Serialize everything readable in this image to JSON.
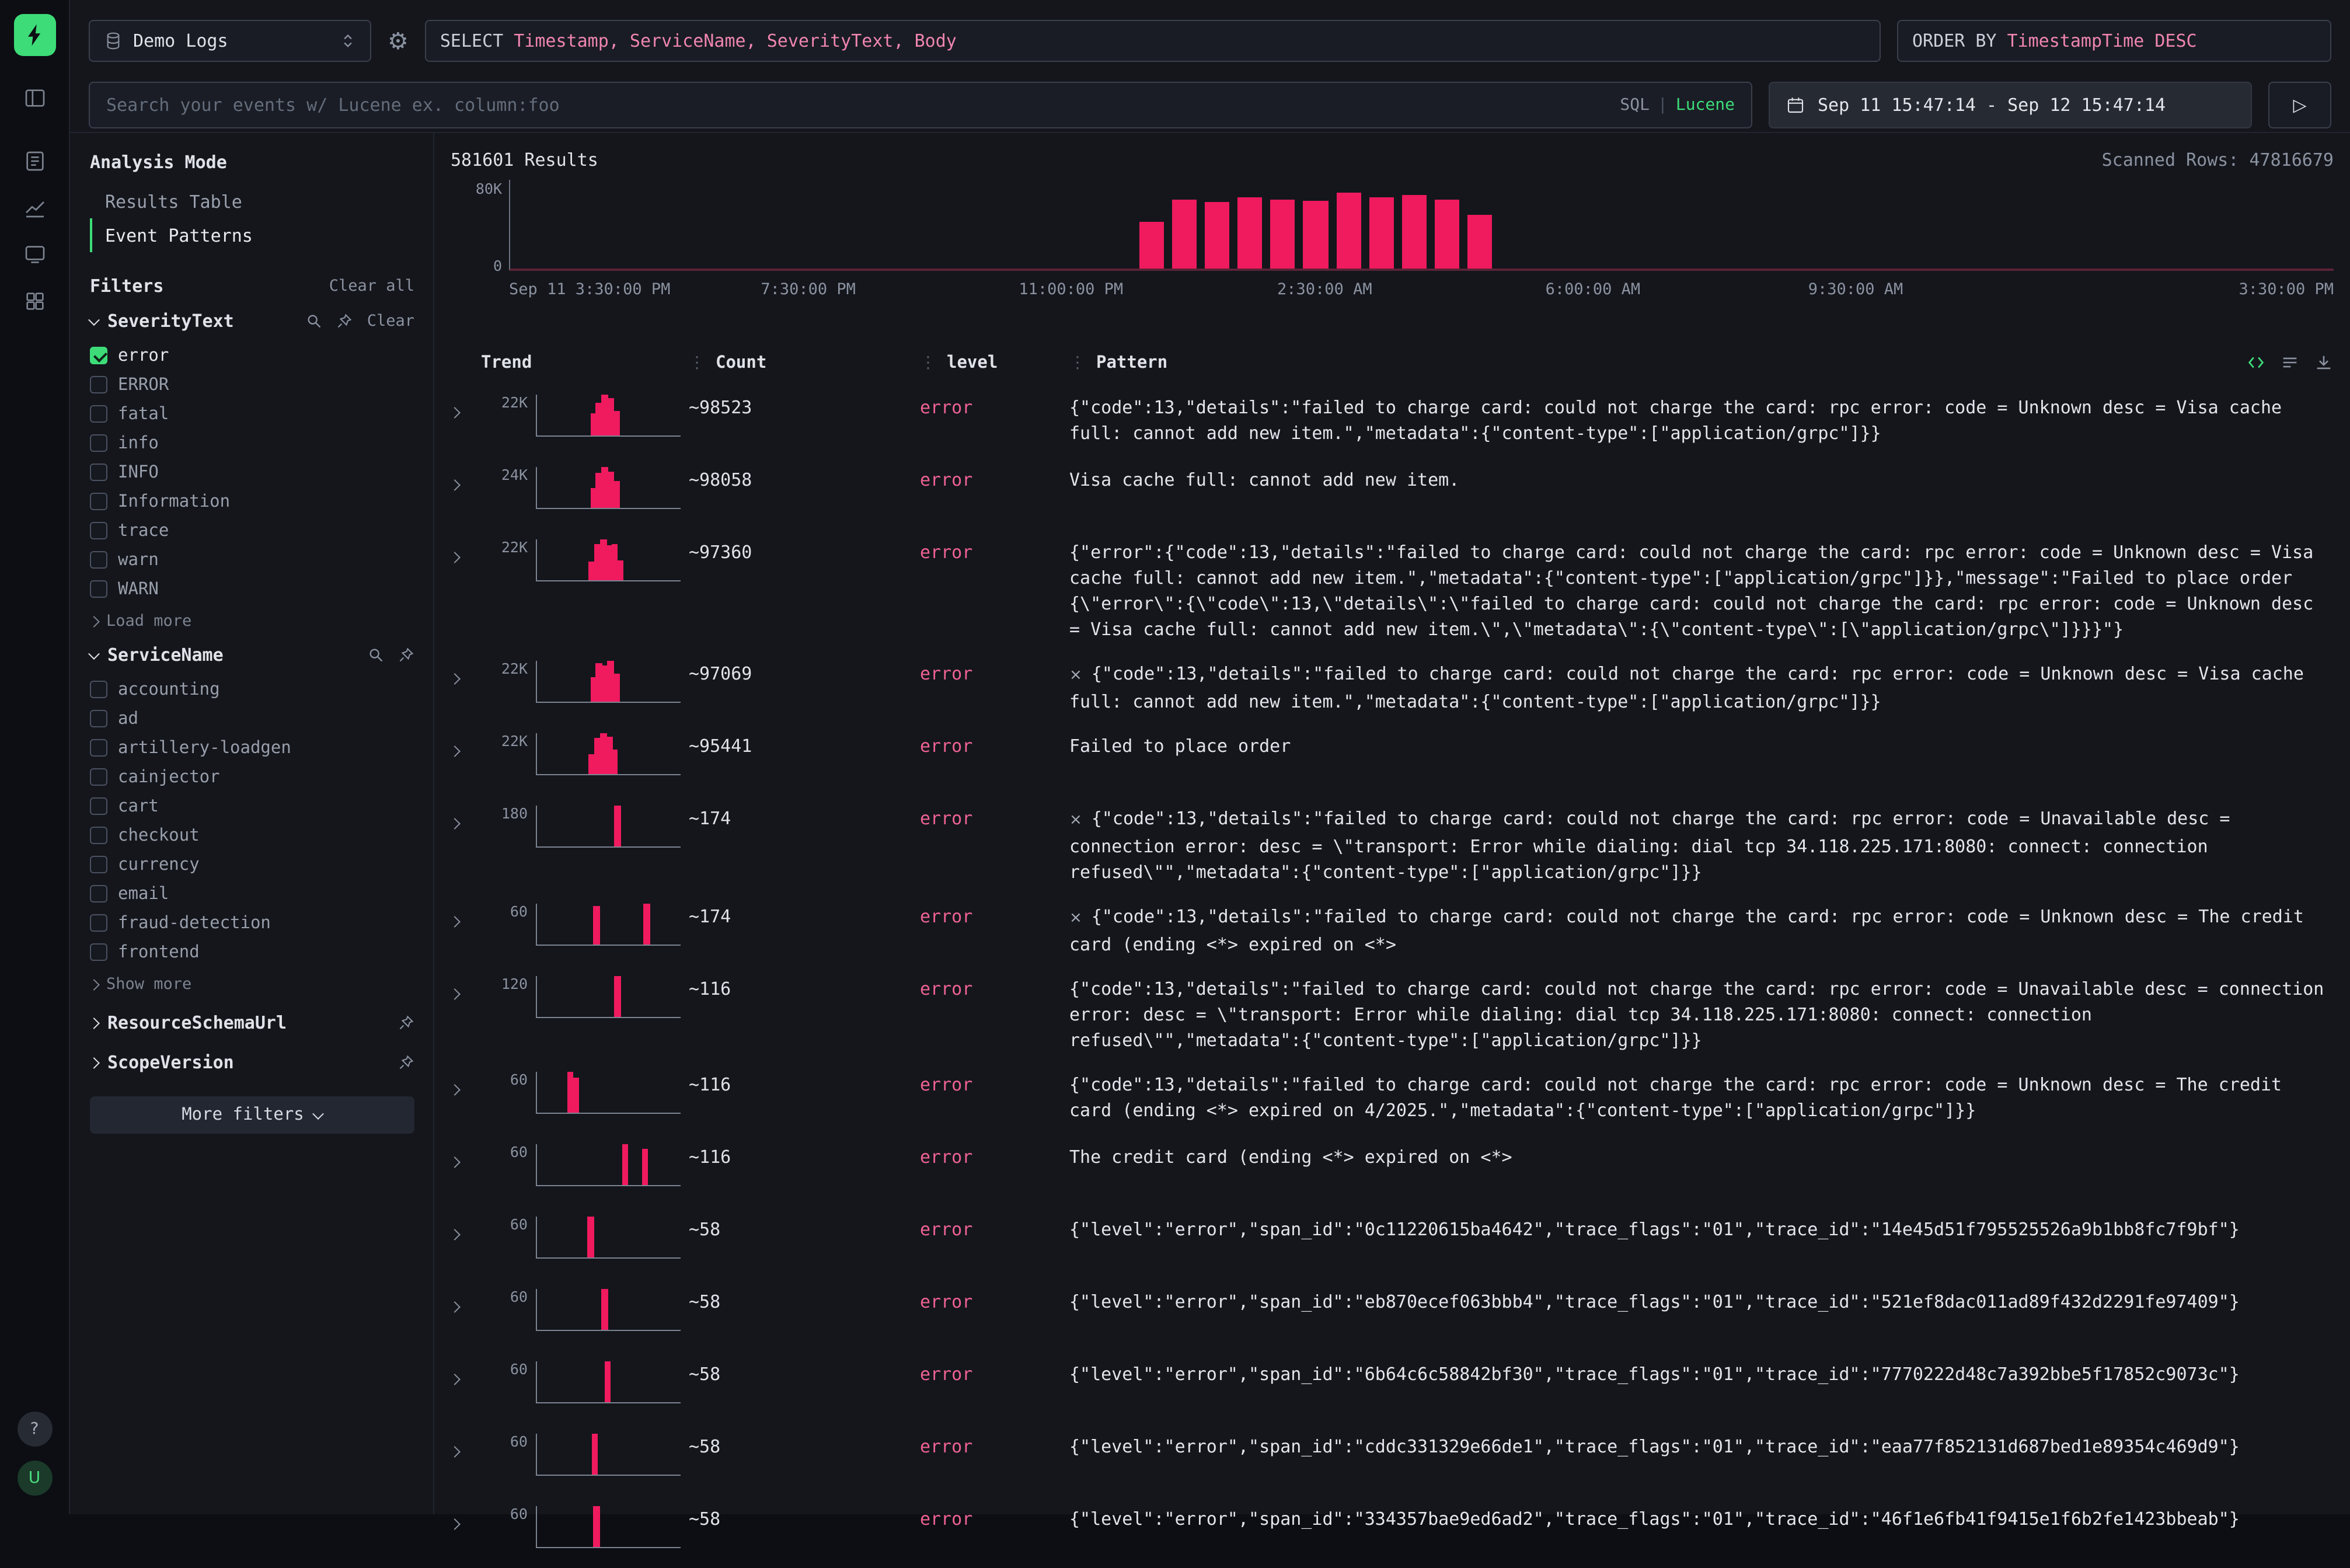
{
  "icons": {
    "gear": "⚙",
    "play": "▷",
    "dots": "⋮",
    "cross": "×"
  },
  "rail": {
    "help_label": "?",
    "avatar_label": "U"
  },
  "topbar": {
    "source_label": "Demo Logs",
    "query_keyword": "SELECT",
    "query_columns": "Timestamp, ServiceName, SeverityText, Body",
    "order_keyword": "ORDER BY",
    "order_value": "TimestampTime DESC",
    "search_placeholder": "Search your events w/ Lucene ex. column:foo",
    "sql_label": "SQL",
    "mode_divider": "|",
    "lucene_label": "Lucene",
    "date_range": "Sep 11 15:47:14 - Sep 12 15:47:14"
  },
  "sidebar": {
    "analysis_mode_label": "Analysis Mode",
    "modes": [
      {
        "label": "Results Table",
        "active": false
      },
      {
        "label": "Event Patterns",
        "active": true
      }
    ],
    "filters_label": "Filters",
    "clear_all_label": "Clear all",
    "severity": {
      "title": "SeverityText",
      "clear_label": "Clear",
      "more_label": "Load more",
      "options": [
        {
          "label": "error",
          "checked": true
        },
        {
          "label": "ERROR",
          "checked": false
        },
        {
          "label": "fatal",
          "checked": false
        },
        {
          "label": "info",
          "checked": false
        },
        {
          "label": "INFO",
          "checked": false
        },
        {
          "label": "Information",
          "checked": false
        },
        {
          "label": "trace",
          "checked": false
        },
        {
          "label": "warn",
          "checked": false
        },
        {
          "label": "WARN",
          "checked": false
        }
      ]
    },
    "service": {
      "title": "ServiceName",
      "more_label": "Show more",
      "options": [
        {
          "label": "accounting",
          "checked": false
        },
        {
          "label": "ad",
          "checked": false
        },
        {
          "label": "artillery-loadgen",
          "checked": false
        },
        {
          "label": "cainjector",
          "checked": false
        },
        {
          "label": "cart",
          "checked": false
        },
        {
          "label": "checkout",
          "checked": false
        },
        {
          "label": "currency",
          "checked": false
        },
        {
          "label": "email",
          "checked": false
        },
        {
          "label": "fraud-detection",
          "checked": false
        },
        {
          "label": "frontend",
          "checked": false
        }
      ]
    },
    "collapsed_sections": [
      {
        "title": "ResourceSchemaUrl"
      },
      {
        "title": "ScopeVersion"
      }
    ],
    "more_filters_label": "More filters"
  },
  "results": {
    "count_label": "581601 Results",
    "scanned_label": "Scanned Rows: 47816679"
  },
  "chart_data": {
    "type": "bar",
    "title": "581601 Results",
    "ylim": [
      0,
      80000
    ],
    "ytick_labels": [
      "80K",
      "0"
    ],
    "x_labels": [
      {
        "text": "Sep 11 3:30:00 PM",
        "f": 0
      },
      {
        "text": "7:30:00 PM",
        "f": 0.164
      },
      {
        "text": "11:00:00 PM",
        "f": 0.308
      },
      {
        "text": "2:30:00 AM",
        "f": 0.447
      },
      {
        "text": "6:00:00 AM",
        "f": 0.594
      },
      {
        "text": "9:30:00 AM",
        "f": 0.738
      },
      {
        "text": "3:30:00 PM",
        "f": 1
      }
    ],
    "bars": [
      {
        "f": 0.345,
        "value": 42000
      },
      {
        "f": 0.363,
        "value": 62000
      },
      {
        "f": 0.381,
        "value": 60000
      },
      {
        "f": 0.399,
        "value": 64000
      },
      {
        "f": 0.417,
        "value": 62000
      },
      {
        "f": 0.435,
        "value": 61000
      },
      {
        "f": 0.453,
        "value": 68000
      },
      {
        "f": 0.471,
        "value": 64000
      },
      {
        "f": 0.489,
        "value": 66000
      },
      {
        "f": 0.507,
        "value": 62000
      },
      {
        "f": 0.525,
        "value": 48000
      }
    ]
  },
  "table": {
    "columns": [
      "Trend",
      "Count",
      "level",
      "Pattern"
    ],
    "rows": [
      {
        "ymax": "22K",
        "count": "~98523",
        "level": "error",
        "cross": false,
        "spark": [
          [
            37,
            55
          ],
          [
            41,
            80
          ],
          [
            45,
            100
          ],
          [
            49,
            92
          ],
          [
            53,
            60
          ]
        ],
        "pattern": "{\"code\":13,\"details\":\"failed to charge card: could not charge the card: rpc error: code = Unknown desc = Visa cache full: cannot add new item.\",\"metadata\":{\"content-type\":[\"application/grpc\"]}}"
      },
      {
        "ymax": "24K",
        "count": "~98058",
        "level": "error",
        "cross": false,
        "spark": [
          [
            37,
            50
          ],
          [
            41,
            85
          ],
          [
            45,
            100
          ],
          [
            49,
            90
          ],
          [
            53,
            65
          ]
        ],
        "pattern": "Visa cache full: cannot add new item."
      },
      {
        "ymax": "22K",
        "count": "~97360",
        "level": "error",
        "cross": false,
        "spark": [
          [
            36,
            45
          ],
          [
            40,
            90
          ],
          [
            44,
            100
          ],
          [
            48,
            85
          ],
          [
            52,
            88
          ],
          [
            56,
            50
          ]
        ],
        "pattern": "{\"error\":{\"code\":13,\"details\":\"failed to charge card: could not charge the card: rpc error: code = Unknown desc = Visa cache full: cannot add new item.\",\"metadata\":{\"content-type\":[\"application/grpc\"]}},\"message\":\"Failed to place order {\\\"error\\\":{\\\"code\\\":13,\\\"details\\\":\\\"failed to charge card: could not charge the card: rpc error: code = Unknown desc = Visa cache full: cannot add new item.\\\",\\\"metadata\\\":{\\\"content-type\\\":[\\\"application/grpc\\\"]}}}\"}"
      },
      {
        "ymax": "22K",
        "count": "~97069",
        "level": "error",
        "cross": true,
        "spark": [
          [
            37,
            60
          ],
          [
            41,
            95
          ],
          [
            45,
            88
          ],
          [
            49,
            100
          ],
          [
            53,
            70
          ]
        ],
        "pattern": "{\"code\":13,\"details\":\"failed to charge card: could not charge the card: rpc error: code = Unknown desc = Visa cache full: cannot add new item.\",\"metadata\":{\"content-type\":[\"application/grpc\"]}}"
      },
      {
        "ymax": "22K",
        "count": "~95441",
        "level": "error",
        "cross": false,
        "spark": [
          [
            36,
            50
          ],
          [
            40,
            88
          ],
          [
            44,
            100
          ],
          [
            48,
            92
          ],
          [
            52,
            60
          ]
        ],
        "pattern": "Failed to place order"
      },
      {
        "ymax": "180",
        "count": "~174",
        "level": "error",
        "cross": true,
        "spark": [
          [
            54,
            100
          ]
        ],
        "pattern": "{\"code\":13,\"details\":\"failed to charge card: could not charge the card: rpc error: code = Unavailable desc = connection error: desc = \\\"transport: Error while dialing: dial tcp 34.118.225.171:8080: connect: connection refused\\\"\",\"metadata\":{\"content-type\":[\"application/grpc\"]}}"
      },
      {
        "ymax": "60",
        "count": "~174",
        "level": "error",
        "cross": true,
        "spark": [
          [
            39,
            95
          ],
          [
            74,
            100
          ]
        ],
        "pattern": "{\"code\":13,\"details\":\"failed to charge card: could not charge the card: rpc error: code = Unknown desc = The credit card (ending <*> expired on <*>"
      },
      {
        "ymax": "120",
        "count": "~116",
        "level": "error",
        "cross": false,
        "spark": [
          [
            54,
            100
          ]
        ],
        "pattern": "{\"code\":13,\"details\":\"failed to charge card: could not charge the card: rpc error: code = Unavailable desc = connection error: desc = \\\"transport: Error while dialing: dial tcp 34.118.225.171:8080: connect: connection refused\\\"\",\"metadata\":{\"content-type\":[\"application/grpc\"]}}"
      },
      {
        "ymax": "60",
        "count": "~116",
        "level": "error",
        "cross": false,
        "spark": [
          [
            21,
            100
          ],
          [
            25,
            85
          ]
        ],
        "pattern": "{\"code\":13,\"details\":\"failed to charge card: could not charge the card: rpc error: code = Unknown desc = The credit card (ending <*> expired on 4/2025.\",\"metadata\":{\"content-type\":[\"application/grpc\"]}}"
      },
      {
        "ymax": "60",
        "count": "~116",
        "level": "error",
        "cross": false,
        "spark": [
          [
            59,
            100
          ],
          [
            73,
            90
          ]
        ],
        "pattern": "The credit card (ending <*> expired on <*>"
      },
      {
        "ymax": "60",
        "count": "~58",
        "level": "error",
        "cross": false,
        "spark": [
          [
            35,
            100
          ]
        ],
        "pattern": "{\"level\":\"error\",\"span_id\":\"0c11220615ba4642\",\"trace_flags\":\"01\",\"trace_id\":\"14e45d51f795525526a9b1bb8fc7f9bf\"}"
      },
      {
        "ymax": "60",
        "count": "~58",
        "level": "error",
        "cross": false,
        "spark": [
          [
            45,
            100
          ]
        ],
        "pattern": "{\"level\":\"error\",\"span_id\":\"eb870ecef063bbb4\",\"trace_flags\":\"01\",\"trace_id\":\"521ef8dac011ad89f432d2291fe97409\"}"
      },
      {
        "ymax": "60",
        "count": "~58",
        "level": "error",
        "cross": false,
        "spark": [
          [
            47,
            100
          ]
        ],
        "pattern": "{\"level\":\"error\",\"span_id\":\"6b64c6c58842bf30\",\"trace_flags\":\"01\",\"trace_id\":\"7770222d48c7a392bbe5f17852c9073c\"}"
      },
      {
        "ymax": "60",
        "count": "~58",
        "level": "error",
        "cross": false,
        "spark": [
          [
            38,
            100
          ]
        ],
        "pattern": "{\"level\":\"error\",\"span_id\":\"cddc331329e66de1\",\"trace_flags\":\"01\",\"trace_id\":\"eaa77f852131d687bed1e89354c469d9\"}"
      },
      {
        "ymax": "60",
        "count": "~58",
        "level": "error",
        "cross": false,
        "spark": [
          [
            39,
            100
          ]
        ],
        "pattern": "{\"level\":\"error\",\"span_id\":\"334357bae9ed6ad2\",\"trace_flags\":\"01\",\"trace_id\":\"46f1e6fb41f9415e1f6b2fe1423bbeab\"}"
      }
    ]
  }
}
